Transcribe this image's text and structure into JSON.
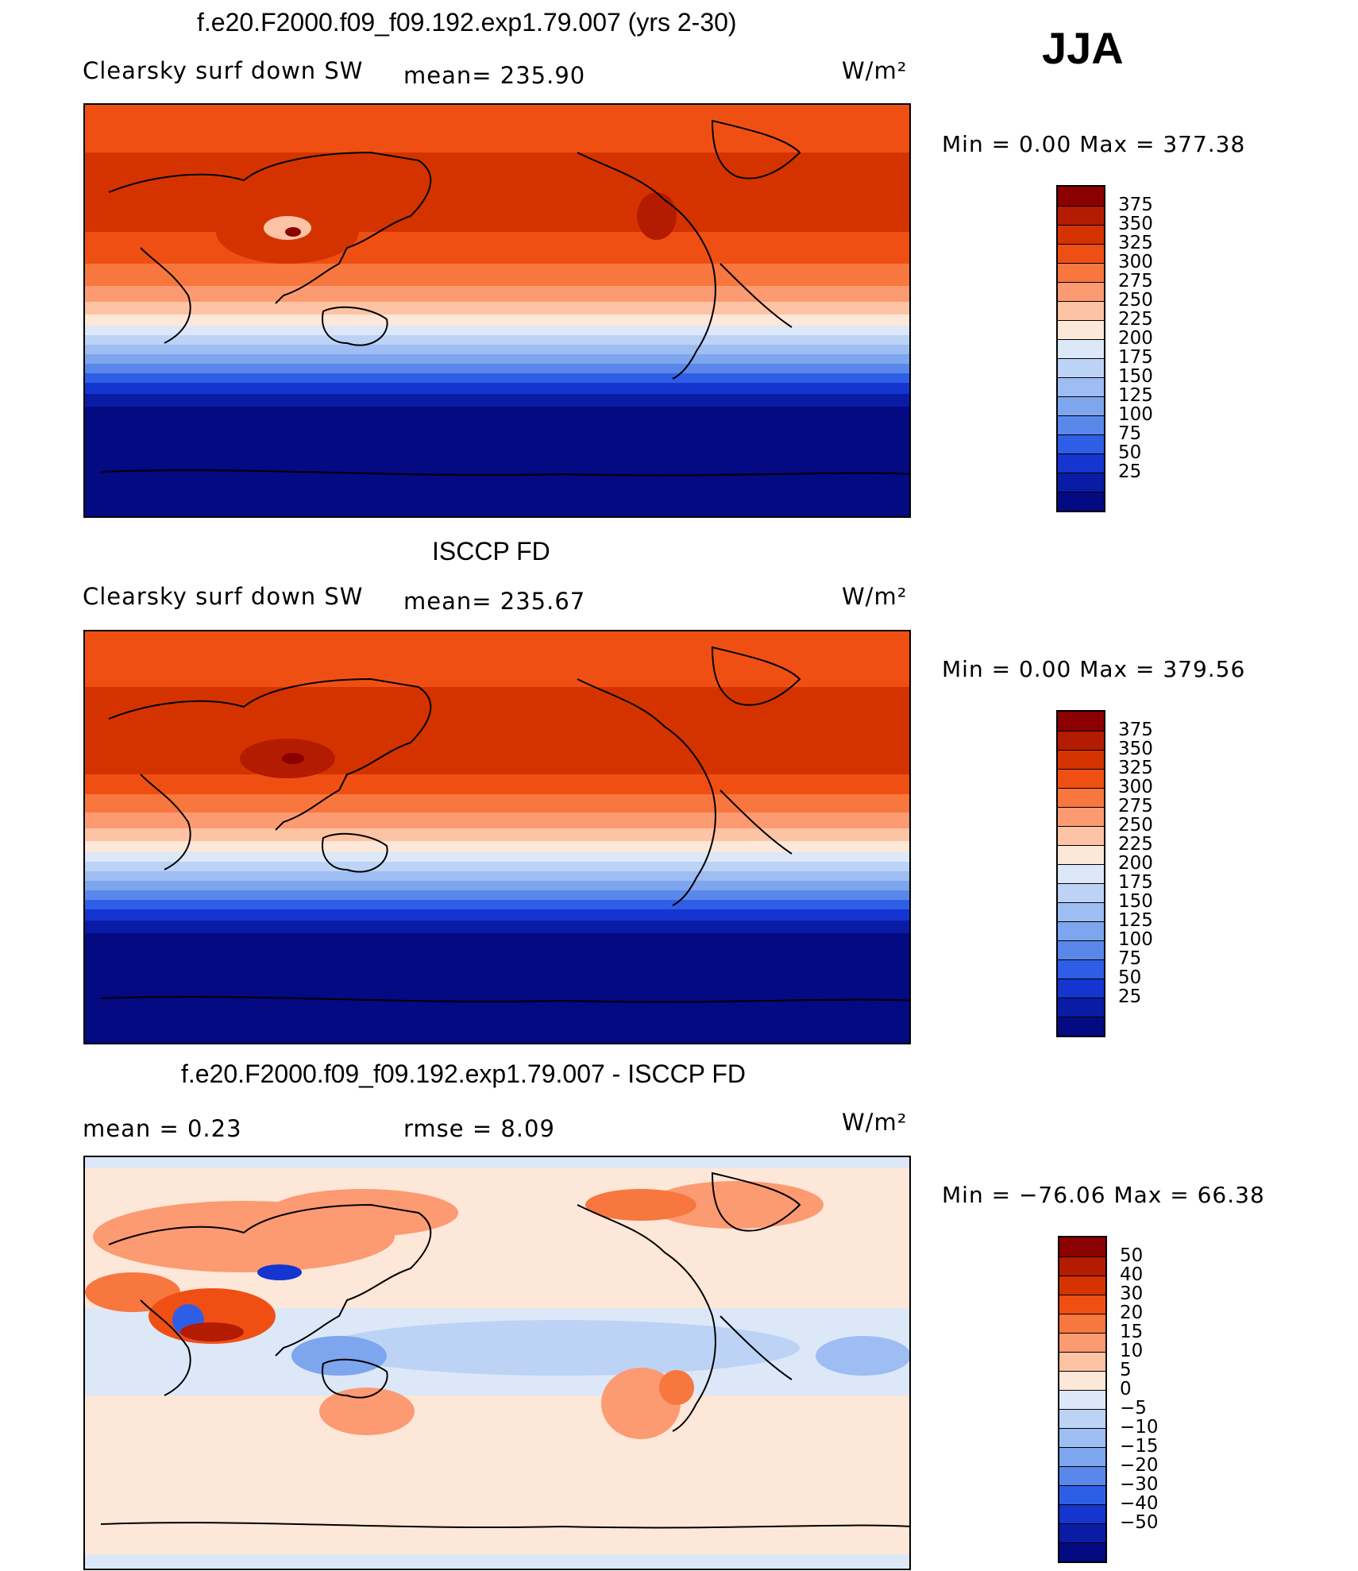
{
  "season": "JJA",
  "panels": [
    {
      "title": "f.e20.F2000.f09_f09.192.exp1.79.007 (yrs 2-30)",
      "left_label": "Clearsky  surf  down  SW",
      "mid_label": "mean=  235.90",
      "units": "W/m²",
      "minmax": "Min  =     0.00  Max  =  377.38",
      "colorbar_ticks": [
        "375",
        "350",
        "325",
        "300",
        "275",
        "250",
        "225",
        "200",
        "175",
        "150",
        "125",
        "100",
        "75",
        "50",
        "25"
      ]
    },
    {
      "title": "ISCCP FD",
      "left_label": "Clearsky  surf  down  SW",
      "mid_label": "mean=  235.67",
      "units": "W/m²",
      "minmax": "Min  =     0.00  Max  =  379.56",
      "colorbar_ticks": [
        "375",
        "350",
        "325",
        "300",
        "275",
        "250",
        "225",
        "200",
        "175",
        "150",
        "125",
        "100",
        "75",
        "50",
        "25"
      ]
    },
    {
      "title": "f.e20.F2000.f09_f09.192.exp1.79.007 - ISCCP FD",
      "left_label": "mean  =      0.23",
      "mid_label": "rmse  =      8.09",
      "units": "W/m²",
      "minmax": "Min  =  −76.06  Max  =     66.38",
      "colorbar_ticks": [
        "50",
        "40",
        "30",
        "20",
        "15",
        "10",
        "5",
        "0",
        "−5",
        "−10",
        "−15",
        "−20",
        "−30",
        "−40",
        "−50"
      ]
    }
  ],
  "colors": {
    "abs_scale": [
      "#8b0000",
      "#b31c00",
      "#d43300",
      "#f04f14",
      "#f8773f",
      "#fc9a72",
      "#fdc3a5",
      "#fde7d8",
      "#dce8f8",
      "#bdd3f5",
      "#9ebdf2",
      "#7ea6ee",
      "#5a88ea",
      "#2f5ee6",
      "#1435cf",
      "#0a1ca5",
      "#030a82"
    ],
    "diff_scale": [
      "#8b0000",
      "#b31c00",
      "#d43300",
      "#f04f14",
      "#f8773f",
      "#fc9a72",
      "#fdc3a5",
      "#fde7d8",
      "#dce8f8",
      "#bdd3f5",
      "#9ebdf2",
      "#7ea6ee",
      "#5a88ea",
      "#2f5ee6",
      "#1435cf",
      "#0a1ca5",
      "#030a82"
    ]
  }
}
